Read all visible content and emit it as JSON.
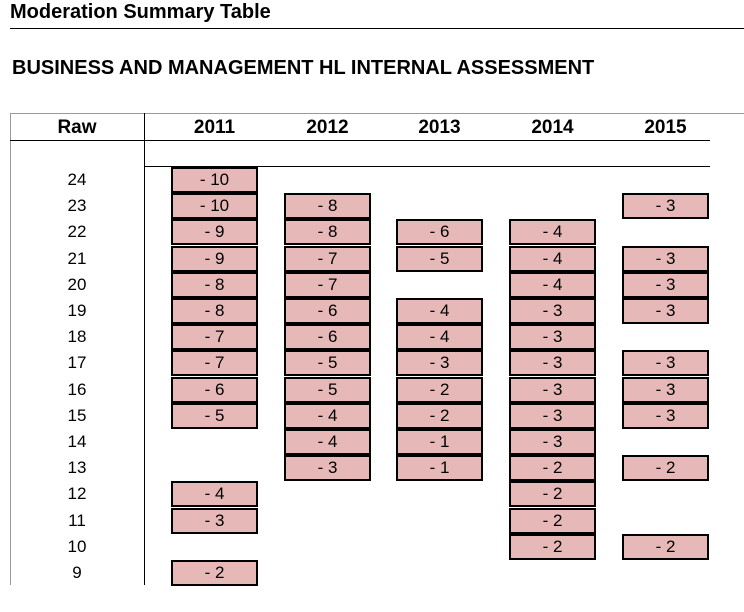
{
  "document": {
    "title": "Moderation Summary Table",
    "subtitle": "BUSINESS AND MANAGEMENT HL INTERNAL ASSESSMENT"
  },
  "table": {
    "raw_header": "Raw",
    "years": [
      "2011",
      "2012",
      "2013",
      "2014",
      "2015"
    ],
    "rows": [
      {
        "raw": "24",
        "values": [
          "- 10",
          null,
          null,
          null,
          null
        ]
      },
      {
        "raw": "23",
        "values": [
          "- 10",
          "- 8",
          null,
          null,
          "- 3"
        ]
      },
      {
        "raw": "22",
        "values": [
          "- 9",
          "- 8",
          "- 6",
          "- 4",
          null
        ]
      },
      {
        "raw": "21",
        "values": [
          "- 9",
          "- 7",
          "- 5",
          "- 4",
          "- 3"
        ]
      },
      {
        "raw": "20",
        "values": [
          "- 8",
          "- 7",
          null,
          "- 4",
          "- 3"
        ]
      },
      {
        "raw": "19",
        "values": [
          "- 8",
          "- 6",
          "- 4",
          "- 3",
          "- 3"
        ]
      },
      {
        "raw": "18",
        "values": [
          "- 7",
          "- 6",
          "- 4",
          "- 3",
          null
        ]
      },
      {
        "raw": "17",
        "values": [
          "- 7",
          "- 5",
          "- 3",
          "- 3",
          "- 3"
        ]
      },
      {
        "raw": "16",
        "values": [
          "- 6",
          "- 5",
          "- 2",
          "- 3",
          "- 3"
        ]
      },
      {
        "raw": "15",
        "values": [
          "- 5",
          "- 4",
          "- 2",
          "- 3",
          "- 3"
        ]
      },
      {
        "raw": "14",
        "values": [
          null,
          "- 4",
          "- 1",
          "- 3",
          null
        ]
      },
      {
        "raw": "13",
        "values": [
          null,
          "- 3",
          "- 1",
          "- 2",
          "- 2"
        ]
      },
      {
        "raw": "12",
        "values": [
          "- 4",
          null,
          null,
          "- 2",
          null
        ]
      },
      {
        "raw": "11",
        "values": [
          "- 3",
          null,
          null,
          "- 2",
          null
        ]
      },
      {
        "raw": "10",
        "values": [
          null,
          null,
          null,
          "- 2",
          "- 2"
        ]
      },
      {
        "raw": "9",
        "values": [
          "- 2",
          null,
          null,
          null,
          null
        ]
      }
    ]
  },
  "colors": {
    "cell_fill": "#e6b8b7",
    "cell_border": "#000000"
  }
}
